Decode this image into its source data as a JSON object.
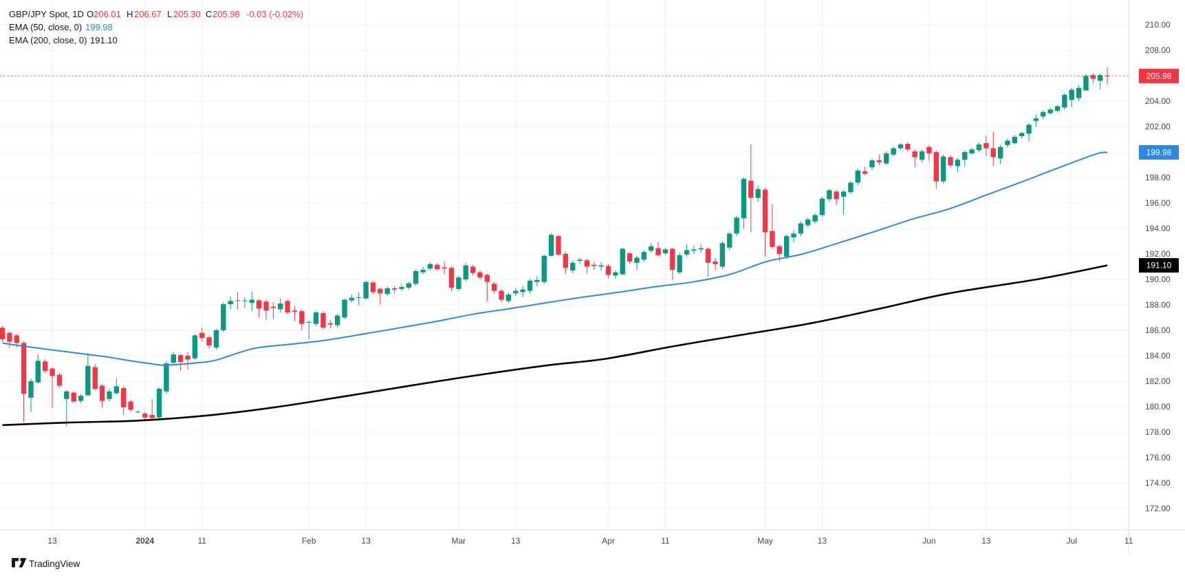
{
  "legend": {
    "title": "GBP/JPY Spot, 1D",
    "o_label": "O",
    "o_value": "206.01",
    "h_label": "H",
    "h_value": "206.67",
    "l_label": "L",
    "l_value": "205.30",
    "c_label": "C",
    "c_value": "205.98",
    "change": "-0.03 (-0.02%)",
    "ema50_label": "EMA (50, close, 0)",
    "ema50_value": "199.98",
    "ema200_label": "EMA (200, close, 0)",
    "ema200_value": "191.10"
  },
  "footer": {
    "brand": "TradingView"
  },
  "price_axis": {
    "labels": [
      "210.00",
      "208.00",
      "206.00",
      "204.00",
      "202.00",
      "200.00",
      "198.00",
      "196.00",
      "194.00",
      "192.00",
      "190.00",
      "188.00",
      "186.00",
      "184.00",
      "182.00",
      "180.00",
      "178.00",
      "176.00",
      "174.00",
      "172.00"
    ],
    "badges": [
      {
        "text": "205.98",
        "price": 205.98,
        "color": "#F23645",
        "name": "last-price-badge"
      },
      {
        "text": "199.98",
        "price": 199.98,
        "color": "#2C87E5",
        "name": "ema50-badge"
      },
      {
        "text": "191.10",
        "price": 191.1,
        "color": "#000000",
        "name": "ema200-badge"
      }
    ]
  },
  "time_axis": {
    "ticks": [
      {
        "label": "13",
        "index": 7,
        "bold": false
      },
      {
        "label": "2024",
        "index": 20,
        "bold": true
      },
      {
        "label": "11",
        "index": 28,
        "bold": false
      },
      {
        "label": "Feb",
        "index": 43,
        "bold": false
      },
      {
        "label": "13",
        "index": 51,
        "bold": false
      },
      {
        "label": "Mar",
        "index": 64,
        "bold": false
      },
      {
        "label": "13",
        "index": 72,
        "bold": false
      },
      {
        "label": "Apr",
        "index": 85,
        "bold": false
      },
      {
        "label": "11",
        "index": 93,
        "bold": false
      },
      {
        "label": "May",
        "index": 107,
        "bold": false
      },
      {
        "label": "13",
        "index": 115,
        "bold": false
      },
      {
        "label": "Jun",
        "index": 130,
        "bold": false
      },
      {
        "label": "13",
        "index": 138,
        "bold": false
      },
      {
        "label": "Jul",
        "index": 150,
        "bold": false
      },
      {
        "label": "11",
        "index": 158,
        "bold": false
      }
    ]
  },
  "chart_data": {
    "type": "candlestick",
    "title": "GBP/JPY Spot, 1D",
    "timeframe": "1D",
    "ylim": [
      170.32,
      211.95
    ],
    "price_line": 205.98,
    "colors": {
      "up": "#089981",
      "down": "#F23645",
      "ema50": "#2C87E5",
      "ema200": "#000000",
      "grid": "#eef0f3",
      "axis_text": "#434651",
      "separator": "#d9dce3"
    },
    "candles": [
      [
        186.2,
        186.35,
        185.1,
        185.3
      ],
      [
        185.8,
        185.9,
        184.6,
        185.1
      ],
      [
        185.6,
        185.7,
        184.65,
        185.0
      ],
      [
        185.0,
        185.15,
        178.75,
        181.0
      ],
      [
        180.7,
        182.2,
        179.6,
        182.0
      ],
      [
        181.9,
        184.1,
        181.8,
        183.6
      ],
      [
        183.55,
        183.7,
        182.6,
        182.8
      ],
      [
        183.0,
        183.1,
        179.9,
        182.4
      ],
      [
        182.5,
        182.65,
        181.5,
        181.65
      ],
      [
        180.6,
        181.3,
        178.45,
        181.2
      ],
      [
        181.1,
        181.2,
        180.3,
        180.4
      ],
      [
        180.45,
        181.0,
        180.3,
        180.85
      ],
      [
        180.9,
        184.2,
        180.8,
        183.2
      ],
      [
        183.1,
        183.35,
        181.3,
        181.4
      ],
      [
        181.65,
        181.8,
        179.9,
        180.45
      ],
      [
        180.6,
        181.4,
        180.4,
        181.2
      ],
      [
        181.05,
        182.2,
        180.95,
        181.6
      ],
      [
        181.45,
        181.6,
        179.35,
        179.95
      ],
      [
        180.4,
        180.55,
        179.6,
        179.75
      ],
      [
        179.6,
        179.7,
        179.5,
        179.6
      ],
      [
        179.45,
        179.6,
        178.85,
        179.15
      ],
      [
        179.35,
        180.6,
        178.9,
        179.1
      ],
      [
        179.15,
        181.5,
        178.9,
        181.4
      ],
      [
        181.2,
        183.6,
        181.0,
        183.4
      ],
      [
        183.45,
        184.3,
        183.3,
        184.1
      ],
      [
        184.05,
        184.1,
        182.85,
        183.5
      ],
      [
        184.0,
        184.3,
        182.9,
        183.7
      ],
      [
        183.8,
        185.7,
        183.7,
        185.6
      ],
      [
        185.8,
        186.2,
        185.1,
        185.4
      ],
      [
        185.45,
        185.6,
        184.55,
        184.8
      ],
      [
        184.65,
        186.1,
        184.5,
        186.0
      ],
      [
        186.0,
        188.2,
        185.85,
        188.05
      ],
      [
        188.05,
        188.65,
        187.65,
        188.3
      ],
      [
        188.3,
        189.0,
        187.65,
        188.35
      ],
      [
        188.3,
        188.6,
        187.75,
        188.35
      ],
      [
        188.15,
        189.05,
        187.5,
        188.4
      ],
      [
        188.35,
        188.45,
        187.0,
        187.7
      ],
      [
        188.25,
        188.4,
        186.8,
        187.55
      ],
      [
        187.85,
        188.2,
        186.85,
        187.75
      ],
      [
        187.65,
        188.5,
        187.4,
        188.1
      ],
      [
        188.3,
        188.4,
        187.25,
        187.4
      ],
      [
        187.55,
        187.9,
        186.7,
        187.45
      ],
      [
        187.5,
        187.65,
        186.0,
        186.5
      ],
      [
        186.6,
        186.75,
        185.3,
        186.65
      ],
      [
        186.5,
        187.5,
        186.3,
        187.4
      ],
      [
        187.35,
        187.5,
        186.1,
        186.2
      ],
      [
        186.55,
        186.8,
        186.15,
        186.45
      ],
      [
        186.4,
        187.3,
        186.2,
        187.15
      ],
      [
        187.0,
        188.5,
        186.85,
        188.4
      ],
      [
        188.35,
        188.8,
        188.2,
        188.55
      ],
      [
        188.55,
        189.0,
        187.95,
        188.6
      ],
      [
        188.5,
        189.9,
        188.4,
        189.8
      ],
      [
        189.75,
        189.85,
        188.85,
        189.0
      ],
      [
        189.25,
        189.35,
        188.0,
        188.9
      ],
      [
        188.85,
        189.45,
        188.7,
        189.3
      ],
      [
        189.3,
        189.5,
        188.9,
        189.2
      ],
      [
        189.25,
        189.7,
        189.1,
        189.4
      ],
      [
        189.35,
        189.8,
        189.2,
        189.7
      ],
      [
        189.65,
        190.8,
        189.5,
        190.65
      ],
      [
        190.55,
        191.0,
        190.4,
        190.75
      ],
      [
        190.85,
        191.35,
        190.7,
        191.2
      ],
      [
        191.15,
        191.3,
        190.7,
        190.8
      ],
      [
        190.95,
        191.4,
        190.4,
        190.85
      ],
      [
        190.9,
        191.0,
        189.1,
        189.35
      ],
      [
        189.25,
        190.3,
        189.1,
        190.15
      ],
      [
        190.0,
        191.3,
        189.85,
        191.1
      ],
      [
        191.0,
        191.15,
        190.3,
        190.5
      ],
      [
        190.55,
        190.7,
        190.0,
        190.15
      ],
      [
        190.35,
        190.45,
        188.25,
        189.8
      ],
      [
        189.65,
        189.8,
        188.9,
        189.1
      ],
      [
        189.1,
        189.25,
        188.2,
        188.4
      ],
      [
        188.3,
        188.95,
        188.15,
        188.8
      ],
      [
        188.9,
        189.3,
        188.7,
        189.1
      ],
      [
        189.0,
        189.5,
        188.6,
        189.2
      ],
      [
        189.1,
        190.05,
        188.9,
        189.9
      ],
      [
        189.8,
        190.25,
        189.45,
        189.95
      ],
      [
        189.8,
        191.95,
        189.65,
        191.85
      ],
      [
        191.85,
        193.6,
        191.8,
        193.5
      ],
      [
        193.4,
        193.55,
        191.8,
        191.95
      ],
      [
        192.0,
        192.15,
        190.45,
        190.9
      ],
      [
        190.7,
        191.45,
        190.5,
        191.3
      ],
      [
        191.45,
        191.7,
        191.2,
        191.55
      ],
      [
        191.5,
        191.6,
        190.45,
        191.0
      ],
      [
        191.15,
        191.4,
        190.75,
        191.05
      ],
      [
        191.0,
        191.35,
        190.7,
        191.1
      ],
      [
        191.05,
        191.2,
        190.1,
        190.35
      ],
      [
        190.3,
        190.7,
        190.05,
        190.55
      ],
      [
        190.4,
        192.5,
        190.3,
        192.4
      ],
      [
        192.05,
        192.15,
        191.2,
        191.4
      ],
      [
        191.3,
        191.85,
        190.7,
        191.7
      ],
      [
        191.55,
        192.3,
        191.4,
        192.15
      ],
      [
        192.25,
        192.85,
        192.1,
        192.6
      ],
      [
        192.45,
        192.95,
        191.8,
        191.9
      ],
      [
        192.05,
        192.5,
        191.9,
        192.35
      ],
      [
        192.4,
        192.5,
        189.95,
        190.75
      ],
      [
        190.55,
        192.1,
        190.4,
        191.9
      ],
      [
        191.95,
        192.75,
        191.8,
        192.3
      ],
      [
        192.25,
        192.65,
        192.0,
        192.35
      ],
      [
        192.35,
        192.75,
        192.1,
        192.45
      ],
      [
        192.4,
        192.5,
        190.2,
        191.3
      ],
      [
        191.4,
        191.7,
        190.7,
        191.2
      ],
      [
        191.0,
        193.0,
        190.8,
        192.85
      ],
      [
        192.5,
        193.75,
        192.3,
        193.6
      ],
      [
        193.6,
        195.0,
        193.4,
        194.85
      ],
      [
        194.8,
        198.0,
        194.0,
        197.9
      ],
      [
        197.75,
        200.6,
        193.7,
        196.4
      ],
      [
        196.4,
        197.35,
        196.1,
        197.1
      ],
      [
        197.05,
        197.2,
        191.8,
        193.7
      ],
      [
        193.8,
        195.9,
        192.4,
        192.55
      ],
      [
        192.6,
        192.7,
        191.4,
        192.0
      ],
      [
        191.8,
        193.55,
        191.6,
        193.4
      ],
      [
        193.3,
        193.85,
        192.9,
        193.6
      ],
      [
        193.6,
        194.55,
        193.4,
        194.4
      ],
      [
        194.25,
        194.85,
        194.1,
        194.7
      ],
      [
        194.55,
        195.2,
        194.4,
        195.05
      ],
      [
        195.05,
        196.5,
        194.9,
        196.35
      ],
      [
        196.3,
        197.1,
        196.1,
        197.0
      ],
      [
        196.9,
        197.0,
        195.85,
        196.3
      ],
      [
        196.5,
        197.0,
        195.1,
        196.9
      ],
      [
        196.85,
        197.75,
        196.7,
        197.6
      ],
      [
        197.6,
        198.7,
        197.4,
        198.55
      ],
      [
        198.5,
        198.85,
        198.2,
        198.3
      ],
      [
        198.8,
        199.5,
        198.6,
        199.35
      ],
      [
        199.35,
        199.8,
        198.95,
        199.2
      ],
      [
        199.1,
        200.05,
        199.0,
        199.9
      ],
      [
        199.8,
        200.45,
        199.65,
        200.3
      ],
      [
        200.3,
        200.7,
        200.2,
        200.6
      ],
      [
        200.65,
        200.8,
        200.05,
        200.2
      ],
      [
        200.05,
        200.2,
        198.8,
        199.6
      ],
      [
        199.4,
        200.2,
        199.2,
        200.05
      ],
      [
        200.4,
        200.55,
        199.3,
        199.9
      ],
      [
        200.0,
        200.1,
        197.15,
        197.7
      ],
      [
        197.7,
        199.8,
        197.55,
        199.65
      ],
      [
        199.6,
        199.75,
        198.8,
        198.95
      ],
      [
        198.9,
        199.55,
        198.4,
        199.4
      ],
      [
        199.4,
        200.15,
        198.85,
        200.0
      ],
      [
        199.9,
        200.35,
        199.8,
        200.2
      ],
      [
        200.15,
        200.75,
        200.0,
        200.6
      ],
      [
        200.7,
        201.3,
        199.7,
        200.3
      ],
      [
        200.3,
        201.6,
        198.9,
        199.6
      ],
      [
        199.5,
        200.55,
        199.05,
        200.4
      ],
      [
        200.55,
        201.05,
        200.35,
        200.9
      ],
      [
        200.7,
        201.35,
        200.6,
        201.2
      ],
      [
        201.25,
        201.6,
        201.05,
        201.5
      ],
      [
        201.45,
        202.3,
        200.85,
        202.15
      ],
      [
        202.45,
        202.95,
        202.0,
        202.65
      ],
      [
        202.8,
        203.3,
        202.6,
        203.15
      ],
      [
        203.05,
        203.5,
        202.95,
        203.35
      ],
      [
        203.25,
        203.7,
        203.1,
        203.6
      ],
      [
        203.5,
        204.6,
        203.35,
        204.5
      ],
      [
        204.1,
        205.05,
        203.55,
        204.9
      ],
      [
        204.25,
        205.25,
        204.0,
        205.05
      ],
      [
        204.85,
        206.15,
        204.8,
        206.0
      ],
      [
        206.05,
        206.2,
        205.35,
        205.75
      ],
      [
        205.6,
        206.2,
        204.9,
        206.05
      ],
      [
        206.01,
        206.67,
        205.3,
        205.98
      ]
    ],
    "ema50": {
      "period": 50,
      "points": [
        [
          0,
          185.0
        ],
        [
          2.8,
          184.76
        ],
        [
          7,
          184.45
        ],
        [
          12,
          184.1
        ],
        [
          15.1,
          183.87
        ],
        [
          18,
          183.6
        ],
        [
          21.1,
          183.35
        ],
        [
          23,
          183.26
        ],
        [
          27.4,
          183.45
        ],
        [
          30,
          183.66
        ],
        [
          35.2,
          184.56
        ],
        [
          40.4,
          184.9
        ],
        [
          45.5,
          185.23
        ],
        [
          50.6,
          185.7
        ],
        [
          55.8,
          186.2
        ],
        [
          60.9,
          186.7
        ],
        [
          66,
          187.26
        ],
        [
          71.2,
          187.7
        ],
        [
          76.3,
          188.16
        ],
        [
          81.4,
          188.6
        ],
        [
          86.6,
          189.0
        ],
        [
          91.8,
          189.44
        ],
        [
          96.9,
          189.8
        ],
        [
          102.1,
          190.4
        ],
        [
          107.2,
          191.4
        ],
        [
          112.3,
          192.0
        ],
        [
          117.5,
          192.9
        ],
        [
          122.6,
          193.8
        ],
        [
          127.7,
          194.74
        ],
        [
          132.9,
          195.55
        ],
        [
          138,
          196.63
        ],
        [
          143.2,
          197.7
        ],
        [
          148.4,
          198.82
        ],
        [
          153.5,
          199.86
        ],
        [
          155,
          199.98
        ]
      ]
    },
    "ema200": {
      "period": 200,
      "points": [
        [
          0,
          178.55
        ],
        [
          9.3,
          178.75
        ],
        [
          19,
          178.9
        ],
        [
          28.6,
          179.3
        ],
        [
          38.2,
          179.95
        ],
        [
          47.9,
          180.8
        ],
        [
          62.3,
          182.1
        ],
        [
          75.8,
          183.2
        ],
        [
          84.5,
          183.75
        ],
        [
          94.2,
          184.75
        ],
        [
          103.8,
          185.65
        ],
        [
          113.4,
          186.55
        ],
        [
          123.1,
          187.7
        ],
        [
          132.8,
          188.9
        ],
        [
          145.6,
          190.05
        ],
        [
          155,
          191.1
        ]
      ]
    }
  }
}
